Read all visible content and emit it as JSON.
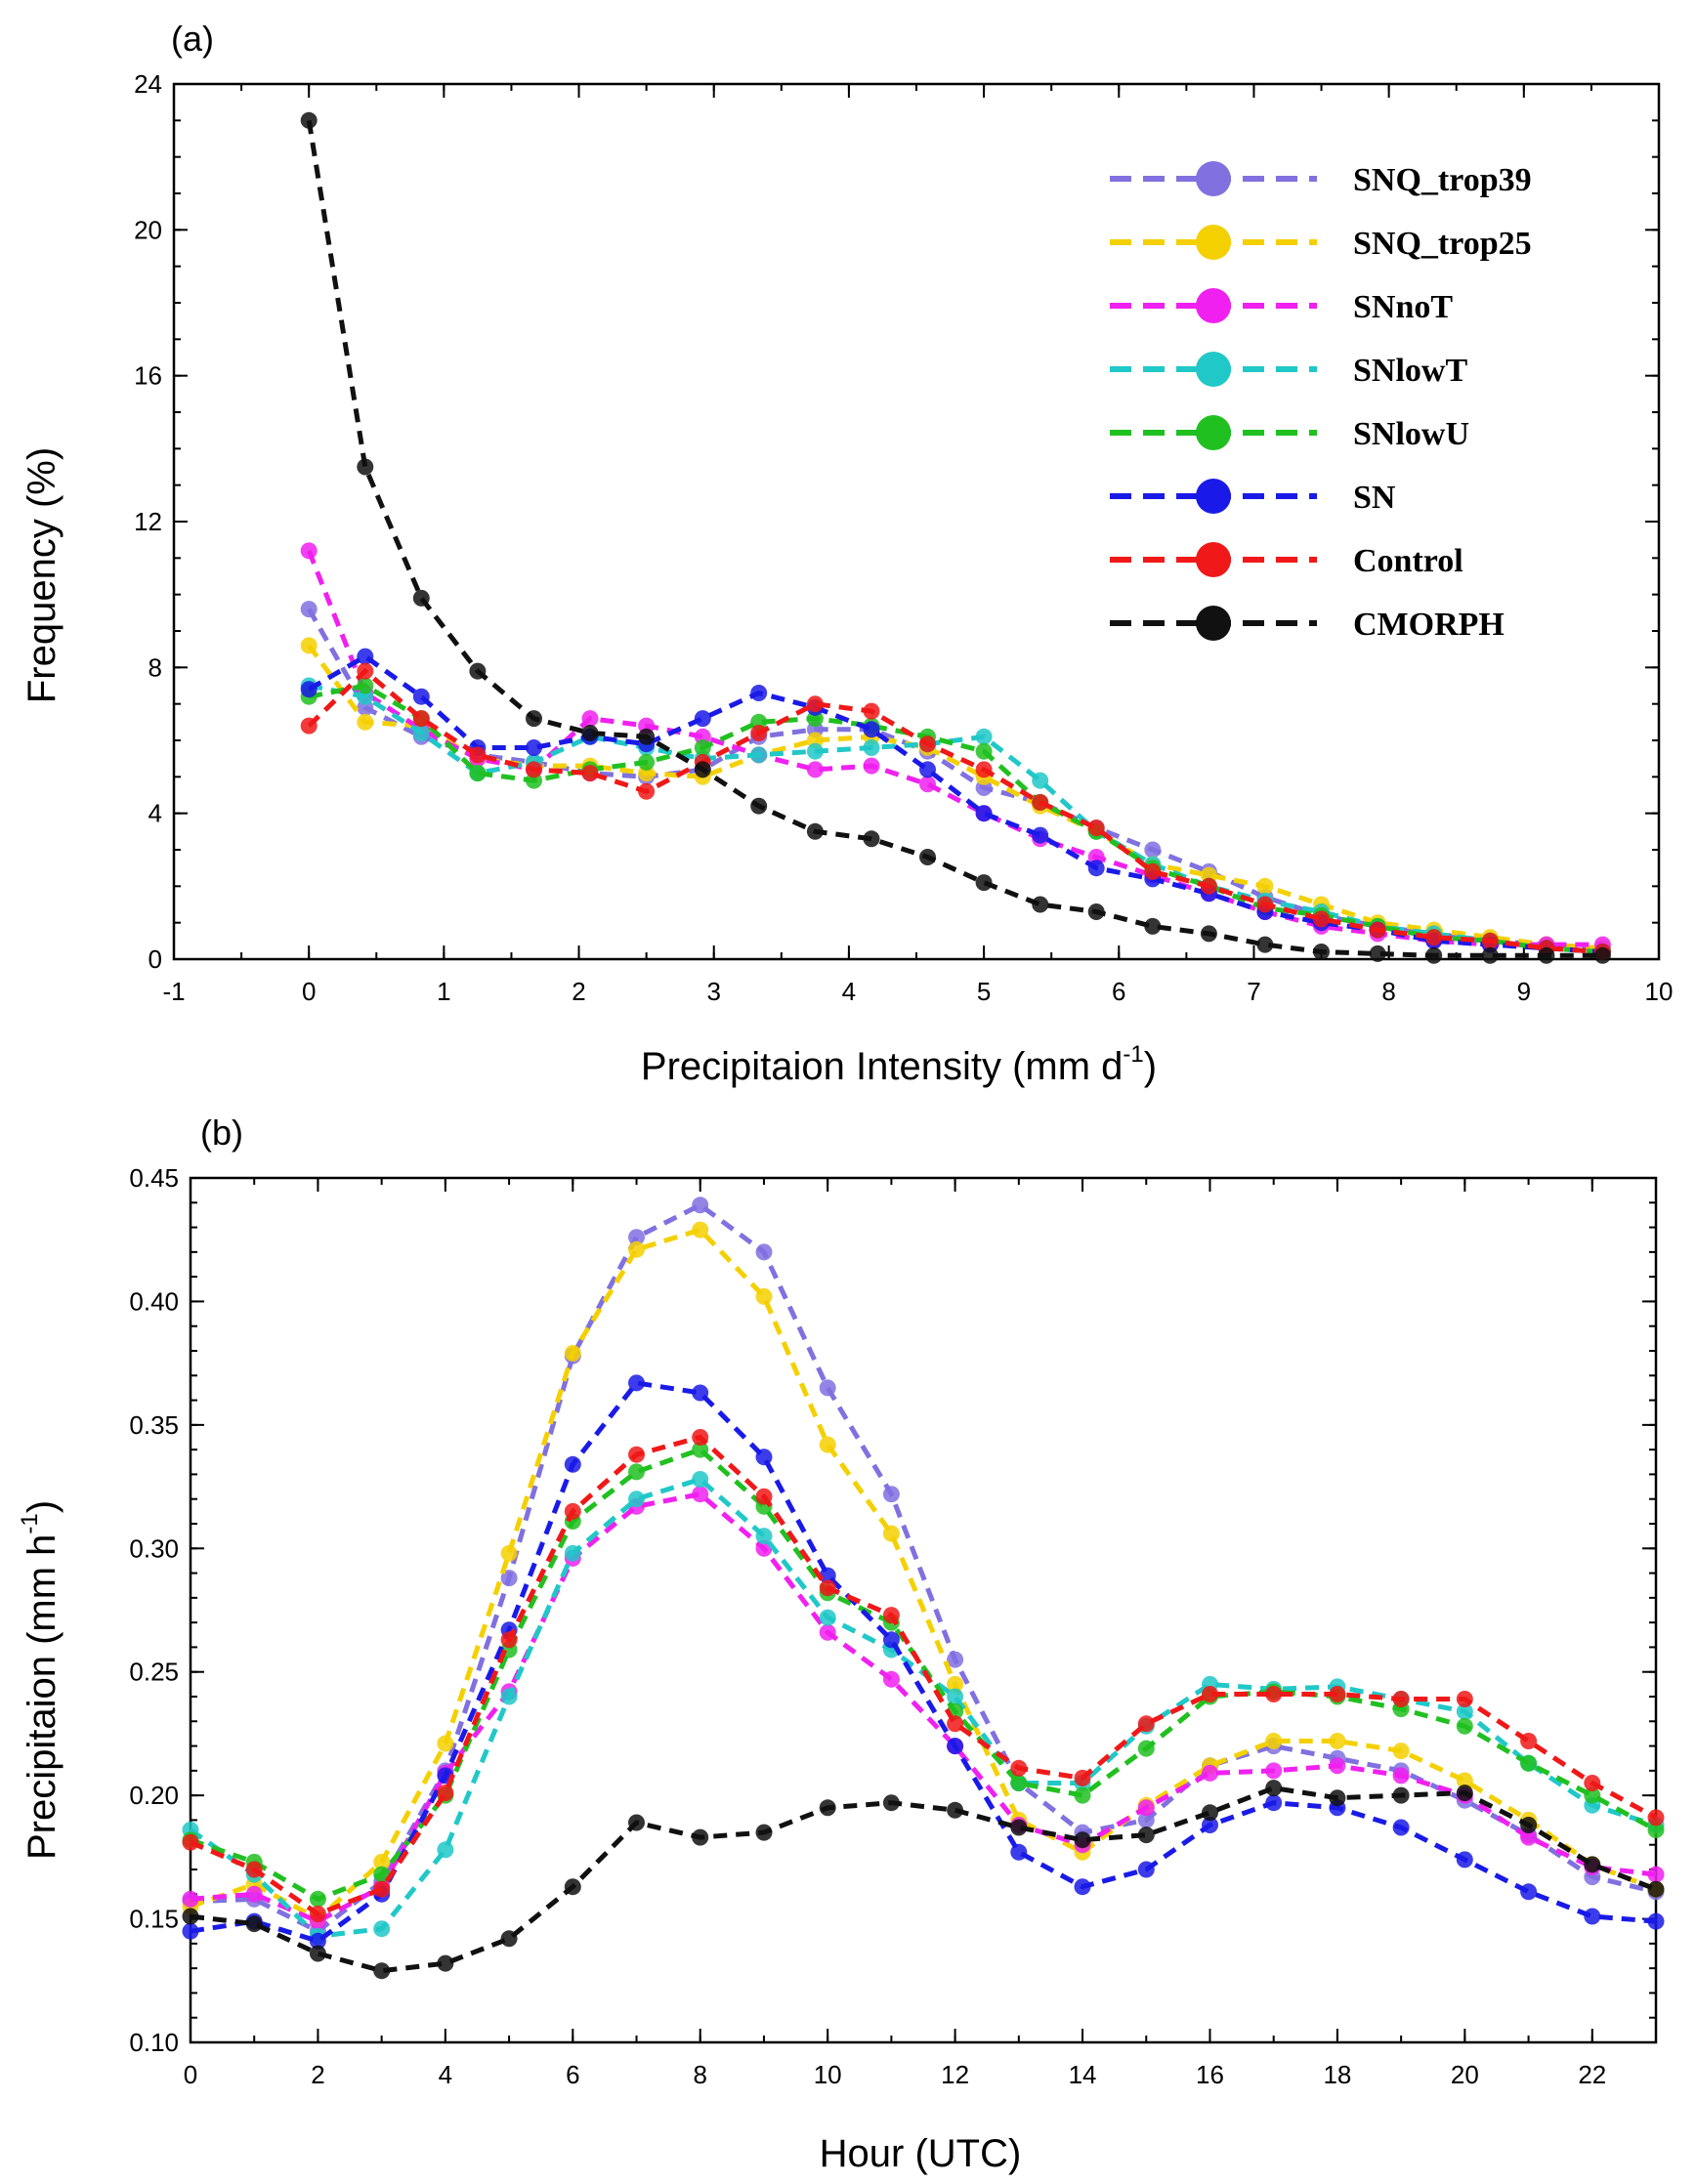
{
  "chart_data": [
    {
      "type": "line",
      "panel_label": "(a)",
      "xlabel": "Precipitaion Intensity (mm d",
      "xlabel_sup": "-1",
      "xlabel_tail": ")",
      "ylabel": "Frequency (%)",
      "xlim": [
        -1,
        10
      ],
      "ylim": [
        0,
        24
      ],
      "xticks": [
        "-1",
        "0",
        "1",
        "2",
        "3",
        "4",
        "5",
        "6",
        "7",
        "8",
        "9",
        "10"
      ],
      "yticks": [
        "0",
        "4",
        "8",
        "12",
        "16",
        "20",
        "24"
      ],
      "legend_position": "top-right",
      "grid": false,
      "x": [
        0,
        0.417,
        0.833,
        1.25,
        1.667,
        2.083,
        2.5,
        2.917,
        3.333,
        3.75,
        4.167,
        4.583,
        5.0,
        5.417,
        5.833,
        6.25,
        6.667,
        7.083,
        7.5,
        7.917,
        8.333,
        8.75,
        9.167,
        9.583
      ],
      "series": [
        {
          "name": "SNQ_trop39",
          "color": "#8070e0",
          "values": [
            9.6,
            6.9,
            6.1,
            5.6,
            5.4,
            5.1,
            5.0,
            5.2,
            6.1,
            6.3,
            6.3,
            5.7,
            4.7,
            4.3,
            3.6,
            3.0,
            2.4,
            1.7,
            1.2,
            0.9,
            0.7,
            0.5,
            0.4,
            0.3
          ]
        },
        {
          "name": "SNQ_trop25",
          "color": "#f5d000",
          "values": [
            8.6,
            6.5,
            6.4,
            5.5,
            5.3,
            5.3,
            5.1,
            5.0,
            5.6,
            6.0,
            6.1,
            5.8,
            5.0,
            4.2,
            3.5,
            2.6,
            2.3,
            2.0,
            1.5,
            1.0,
            0.8,
            0.6,
            0.4,
            0.3
          ]
        },
        {
          "name": "SNnoT",
          "color": "#f020f0",
          "values": [
            11.2,
            7.3,
            6.3,
            5.5,
            5.2,
            6.6,
            6.4,
            6.1,
            5.6,
            5.2,
            5.3,
            4.8,
            4.0,
            3.3,
            2.8,
            2.3,
            1.8,
            1.3,
            0.9,
            0.7,
            0.5,
            0.4,
            0.4,
            0.4
          ]
        },
        {
          "name": "SNlowT",
          "color": "#20c8c8",
          "values": [
            7.5,
            7.2,
            6.2,
            5.1,
            5.4,
            6.1,
            5.8,
            5.5,
            5.6,
            5.7,
            5.8,
            5.9,
            6.1,
            4.9,
            3.5,
            2.6,
            2.0,
            1.6,
            1.3,
            0.9,
            0.7,
            0.5,
            0.3,
            0.2
          ]
        },
        {
          "name": "SNlowU",
          "color": "#20c020",
          "values": [
            7.2,
            7.5,
            6.6,
            5.1,
            4.9,
            5.2,
            5.4,
            5.8,
            6.5,
            6.6,
            6.4,
            6.1,
            5.7,
            4.3,
            3.5,
            2.5,
            2.0,
            1.4,
            1.2,
            0.9,
            0.6,
            0.5,
            0.3,
            0.2
          ]
        },
        {
          "name": "SN",
          "color": "#1a1ae8",
          "values": [
            7.4,
            8.3,
            7.2,
            5.8,
            5.8,
            6.1,
            5.9,
            6.6,
            7.3,
            6.9,
            6.3,
            5.2,
            4.0,
            3.4,
            2.5,
            2.2,
            1.8,
            1.3,
            1.0,
            0.8,
            0.5,
            0.4,
            0.3,
            0.2
          ]
        },
        {
          "name": "Control",
          "color": "#f01818",
          "values": [
            6.4,
            7.9,
            6.6,
            5.6,
            5.2,
            5.1,
            4.6,
            5.4,
            6.2,
            7.0,
            6.8,
            5.9,
            5.2,
            4.3,
            3.6,
            2.4,
            2.0,
            1.5,
            1.1,
            0.8,
            0.6,
            0.5,
            0.3,
            0.2
          ]
        },
        {
          "name": "CMORPH",
          "color": "#111111",
          "values": [
            23.0,
            13.5,
            9.9,
            7.9,
            6.6,
            6.2,
            6.1,
            5.2,
            4.2,
            3.5,
            3.3,
            2.8,
            2.1,
            1.5,
            1.3,
            0.9,
            0.7,
            0.4,
            0.2,
            0.15,
            0.1,
            0.1,
            0.1,
            0.1
          ]
        }
      ]
    },
    {
      "type": "line",
      "panel_label": "(b)",
      "xlabel": "Hour (UTC)",
      "ylabel": "Precipitaion (mm h",
      "ylabel_sup": "-1",
      "ylabel_tail": ")",
      "xlim": [
        0,
        23
      ],
      "ylim": [
        0.1,
        0.45
      ],
      "xticks": [
        "0",
        "2",
        "4",
        "6",
        "8",
        "10",
        "12",
        "14",
        "16",
        "18",
        "20",
        "22"
      ],
      "yticks": [
        "0.10",
        "0.15",
        "0.20",
        "0.25",
        "0.30",
        "0.35",
        "0.40",
        "0.45"
      ],
      "grid": false,
      "x": [
        0,
        1,
        2,
        3,
        4,
        5,
        6,
        7,
        8,
        9,
        10,
        11,
        12,
        13,
        14,
        15,
        16,
        17,
        18,
        19,
        20,
        21,
        22,
        23
      ],
      "series": [
        {
          "color": "#8070e0",
          "values": [
            0.157,
            0.158,
            0.145,
            0.165,
            0.21,
            0.288,
            0.378,
            0.426,
            0.439,
            0.42,
            0.365,
            0.322,
            0.255,
            0.205,
            0.185,
            0.19,
            0.212,
            0.22,
            0.215,
            0.21,
            0.198,
            0.184,
            0.167,
            0.161
          ]
        },
        {
          "color": "#f5d000",
          "values": [
            0.155,
            0.164,
            0.15,
            0.173,
            0.221,
            0.298,
            0.379,
            0.421,
            0.429,
            0.402,
            0.342,
            0.306,
            0.245,
            0.19,
            0.177,
            0.196,
            0.212,
            0.222,
            0.222,
            0.218,
            0.206,
            0.19,
            0.172,
            0.162
          ]
        },
        {
          "color": "#f020f0",
          "values": [
            0.158,
            0.16,
            0.149,
            0.163,
            0.209,
            0.242,
            0.296,
            0.317,
            0.322,
            0.3,
            0.266,
            0.247,
            0.22,
            0.188,
            0.18,
            0.195,
            0.209,
            0.21,
            0.212,
            0.208,
            0.2,
            0.183,
            0.171,
            0.168
          ]
        },
        {
          "color": "#20c8c8",
          "values": [
            0.186,
            0.168,
            0.143,
            0.146,
            0.178,
            0.24,
            0.298,
            0.32,
            0.328,
            0.305,
            0.272,
            0.259,
            0.24,
            0.205,
            0.205,
            0.228,
            0.245,
            0.243,
            0.244,
            0.239,
            0.234,
            0.213,
            0.196,
            0.188
          ]
        },
        {
          "color": "#20c020",
          "values": [
            0.182,
            0.173,
            0.158,
            0.168,
            0.2,
            0.259,
            0.311,
            0.331,
            0.34,
            0.317,
            0.282,
            0.27,
            0.234,
            0.205,
            0.2,
            0.219,
            0.24,
            0.242,
            0.24,
            0.235,
            0.228,
            0.213,
            0.2,
            0.186
          ]
        },
        {
          "color": "#1a1ae8",
          "values": [
            0.145,
            0.149,
            0.141,
            0.16,
            0.208,
            0.267,
            0.334,
            0.367,
            0.363,
            0.337,
            0.289,
            0.263,
            0.22,
            0.177,
            0.163,
            0.17,
            0.188,
            0.197,
            0.195,
            0.187,
            0.174,
            0.161,
            0.151,
            0.149
          ]
        },
        {
          "color": "#f01818",
          "values": [
            0.181,
            0.17,
            0.152,
            0.162,
            0.201,
            0.263,
            0.315,
            0.338,
            0.345,
            0.321,
            0.284,
            0.273,
            0.229,
            0.211,
            0.207,
            0.229,
            0.241,
            0.241,
            0.241,
            0.239,
            0.239,
            0.222,
            0.205,
            0.191
          ]
        },
        {
          "color": "#111111",
          "values": [
            0.151,
            0.148,
            0.136,
            0.129,
            0.132,
            0.142,
            0.163,
            0.189,
            0.183,
            0.185,
            0.195,
            0.197,
            0.194,
            0.187,
            0.182,
            0.184,
            0.193,
            0.203,
            0.199,
            0.2,
            0.201,
            0.188,
            0.172,
            0.162
          ]
        }
      ]
    }
  ]
}
